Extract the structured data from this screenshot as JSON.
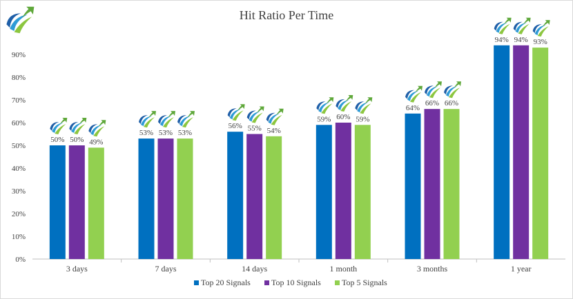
{
  "chart_data": {
    "type": "bar",
    "title": "Hit Ratio Per Time",
    "xlabel": "",
    "ylabel": "",
    "ylim": [
      0,
      100
    ],
    "yticks": [
      "0%",
      "10%",
      "20%",
      "30%",
      "40%",
      "50%",
      "60%",
      "70%",
      "80%",
      "90%"
    ],
    "categories": [
      "3 days",
      "7 days",
      "14 days",
      "1 month",
      "3 months",
      "1 year"
    ],
    "series": [
      {
        "name": "Top 20 Signals",
        "color": "#0070c0",
        "values": [
          50,
          53,
          56,
          59,
          64,
          94
        ],
        "labels": [
          "50%",
          "53%",
          "56%",
          "59%",
          "64%",
          "94%"
        ]
      },
      {
        "name": "Top 10 Signals",
        "color": "#7030a0",
        "values": [
          50,
          53,
          55,
          60,
          66,
          94
        ],
        "labels": [
          "50%",
          "53%",
          "55%",
          "60%",
          "66%",
          "94%"
        ]
      },
      {
        "name": "Top 5 Signals",
        "color": "#92d050",
        "values": [
          49,
          53,
          54,
          59,
          66,
          93
        ],
        "labels": [
          "49%",
          "53%",
          "54%",
          "59%",
          "66%",
          "93%"
        ]
      }
    ],
    "grid": false,
    "legend": "bottom",
    "data_label_icon": "logo-swoosh-icon"
  },
  "logo": {
    "icon": "logo-swoosh-icon"
  }
}
